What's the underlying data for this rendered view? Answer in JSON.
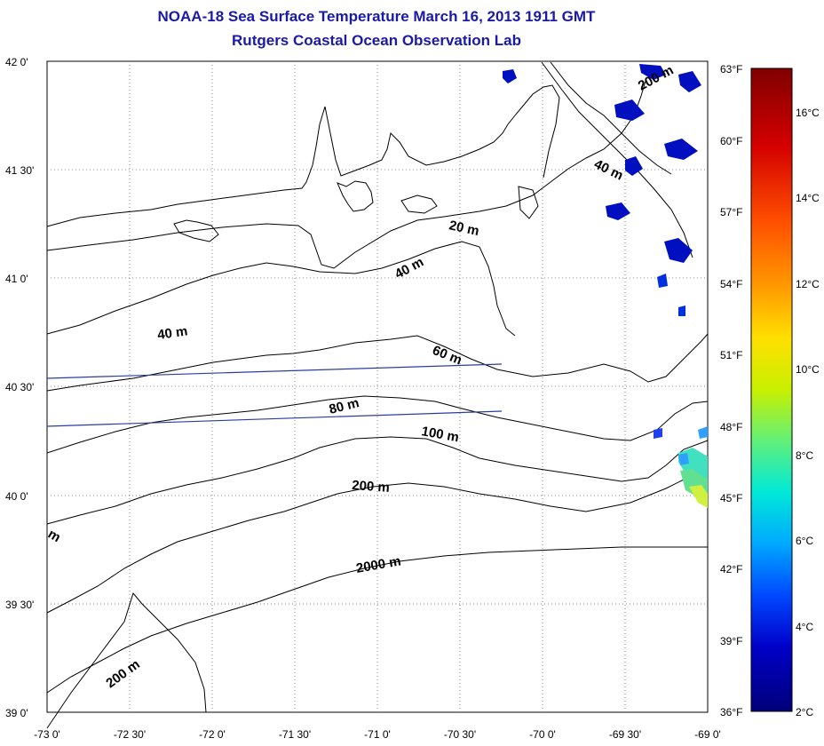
{
  "title": {
    "line1": "NOAA-18 Sea Surface Temperature March 16, 2013 1911 GMT",
    "line2": "Rutgers Coastal Ocean Observation Lab"
  },
  "axes": {
    "lat_labels": [
      "42 0'",
      "41 30'",
      "41 0'",
      "40 30'",
      "40 0'",
      "39 30'",
      "39 0'"
    ],
    "lon_labels": [
      "-73 0'",
      "-72 30'",
      "-72 0'",
      "-71 30'",
      "-71 0'",
      "-70 30'",
      "-70 0'",
      "-69 30'",
      "-69 0'"
    ],
    "lat_range": [
      39,
      42
    ],
    "lon_range": [
      -73,
      -69
    ]
  },
  "contour_labels": [
    "20 m",
    "40 m",
    "40 m",
    "40 m",
    "60 m",
    "80 m",
    "100 m",
    "200 m",
    "2000 m",
    "200 m",
    "200 m",
    "m"
  ],
  "colorbar": {
    "fahrenheit_labels": [
      "63°F",
      "60°F",
      "57°F",
      "54°F",
      "51°F",
      "48°F",
      "45°F",
      "42°F",
      "39°F",
      "36°F"
    ],
    "celsius_labels": [
      "16°C",
      "14°C",
      "12°C",
      "10°C",
      "8°C",
      "6°C",
      "4°C",
      "2°C"
    ],
    "range_c": [
      2,
      17
    ],
    "colors": [
      "#800000",
      "#d40000",
      "#ff5000",
      "#ff9a00",
      "#ffe000",
      "#c8f000",
      "#60f07a",
      "#00e8d8",
      "#00a8ff",
      "#0048ff",
      "#0000c8",
      "#00007a"
    ]
  }
}
